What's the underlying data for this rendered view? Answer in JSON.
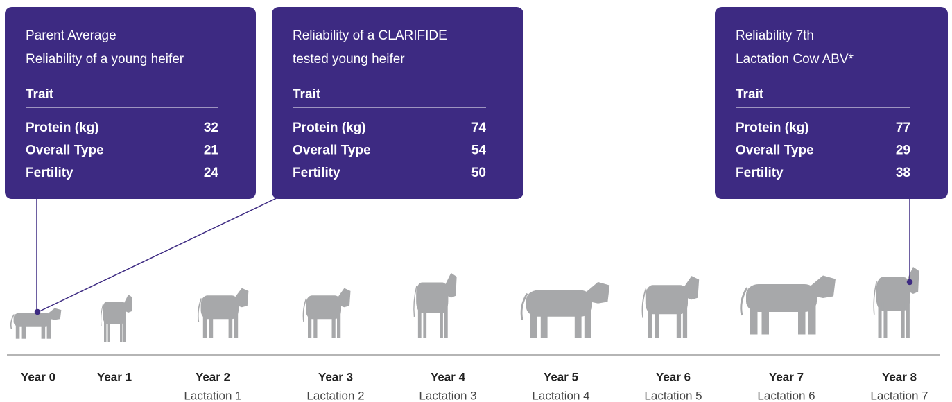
{
  "boxes": [
    {
      "title": [
        "Parent Average",
        "Reliability of a young heifer"
      ],
      "header": "Trait",
      "rows": [
        {
          "label": "Protein (kg)",
          "value": 32
        },
        {
          "label": "Overall Type",
          "value": 21
        },
        {
          "label": "Fertility",
          "value": 24
        }
      ]
    },
    {
      "title": [
        "Reliability of a CLARIFIDE",
        "tested young heifer"
      ],
      "header": "Trait",
      "rows": [
        {
          "label": "Protein (kg)",
          "value": 74
        },
        {
          "label": "Overall Type",
          "value": 54
        },
        {
          "label": "Fertility",
          "value": 50
        }
      ]
    },
    {
      "title": [
        "Reliability 7th",
        "Lactation Cow ABV*"
      ],
      "header": "Trait",
      "rows": [
        {
          "label": "Protein (kg)",
          "value": 77
        },
        {
          "label": "Overall Type",
          "value": 29
        },
        {
          "label": "Fertility",
          "value": 38
        }
      ]
    }
  ],
  "timeline": [
    {
      "year": "Year 0"
    },
    {
      "year": "Year 1"
    },
    {
      "year": "Year 2",
      "lactation": "Lactation 1"
    },
    {
      "year": "Year 3",
      "lactation": "Lactation 2"
    },
    {
      "year": "Year 4",
      "lactation": "Lactation 3"
    },
    {
      "year": "Year 5",
      "lactation": "Lactation 4"
    },
    {
      "year": "Year 6",
      "lactation": "Lactation 5"
    },
    {
      "year": "Year 7",
      "lactation": "Lactation 6"
    },
    {
      "year": "Year 8",
      "lactation": "Lactation 7"
    }
  ]
}
